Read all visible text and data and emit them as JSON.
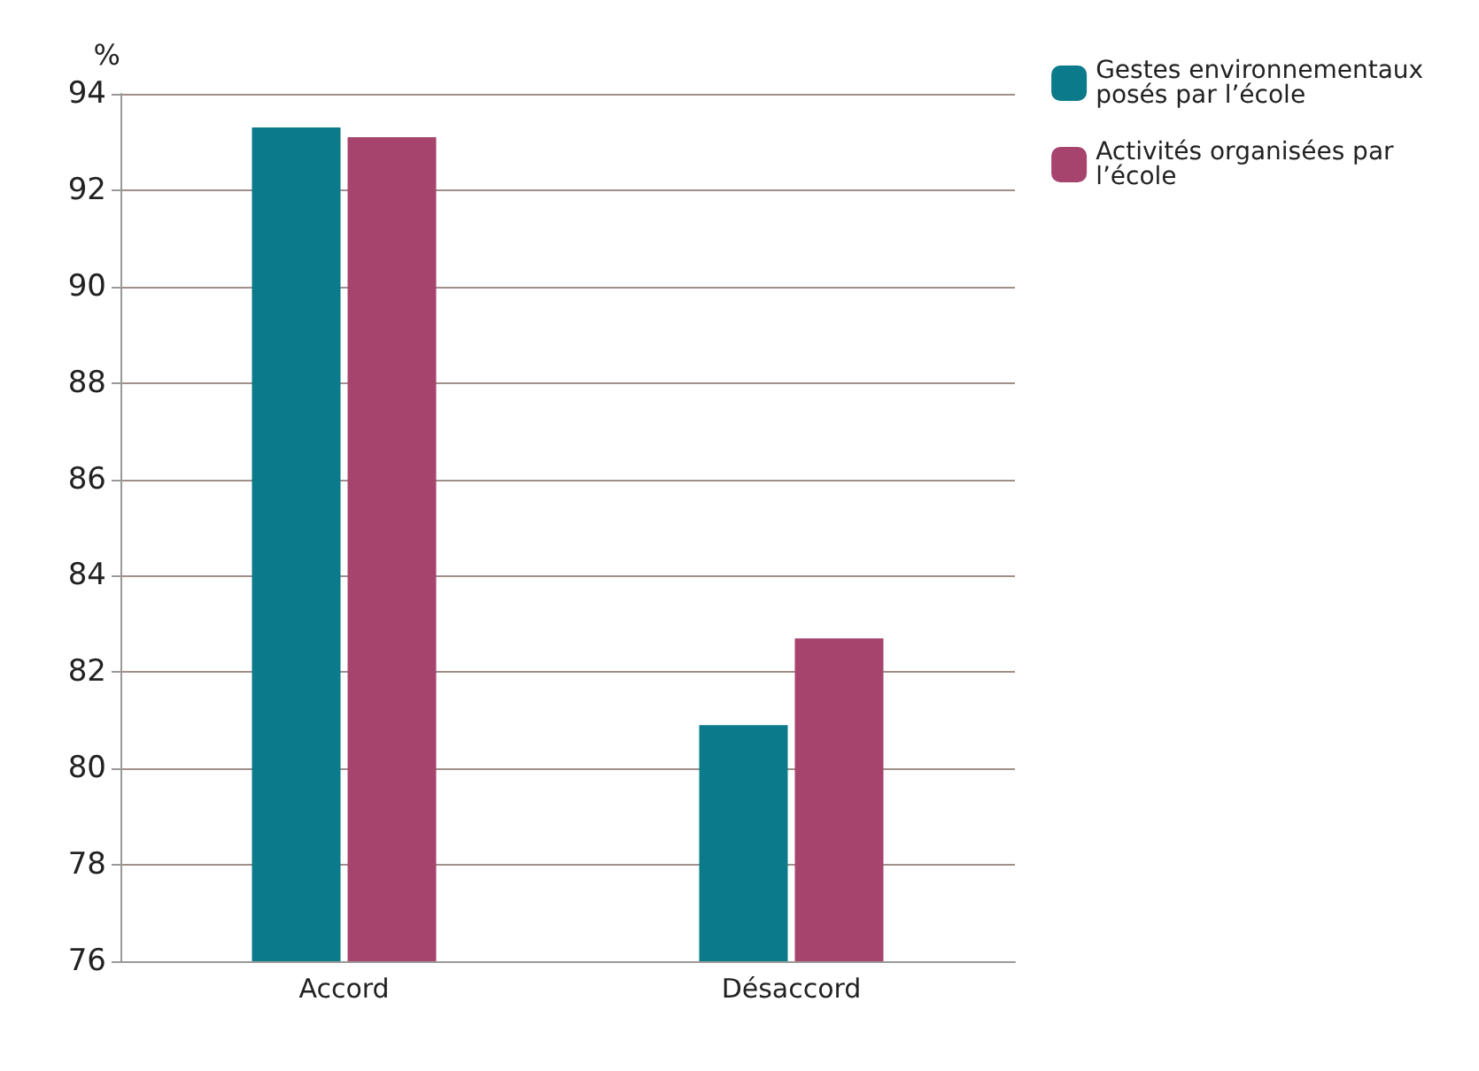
{
  "chart_data": {
    "type": "bar",
    "ylabel": "%",
    "categories": [
      "Accord",
      "Désaccord"
    ],
    "series": [
      {
        "name": "Gestes environnementaux posés par l’école",
        "color": "#0b7a8a",
        "values": [
          93.3,
          80.9
        ]
      },
      {
        "name": "Activités organisées par l’école",
        "color": "#a6446d",
        "values": [
          93.1,
          82.7
        ]
      }
    ],
    "ylim": [
      76,
      94
    ],
    "yticks": [
      76,
      78,
      80,
      82,
      84,
      86,
      88,
      90,
      92,
      94
    ],
    "grid": "y",
    "legend": "top right"
  }
}
